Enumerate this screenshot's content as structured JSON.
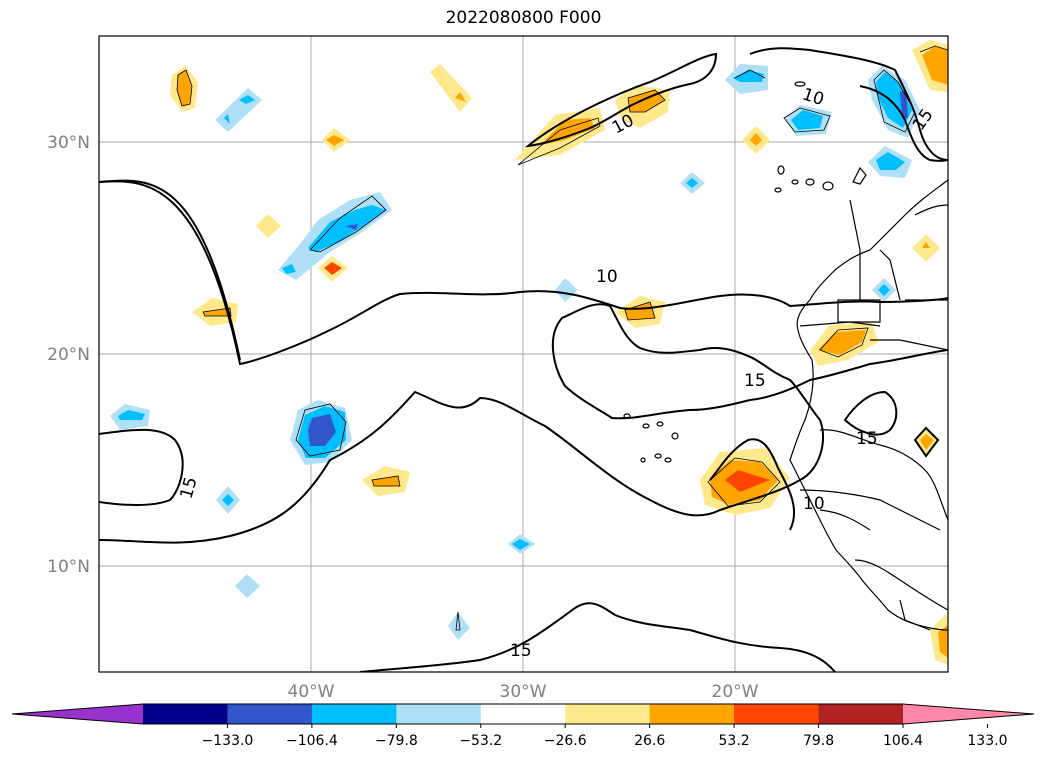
{
  "title": "2022080800 F000",
  "chart_data": {
    "type": "heatmap",
    "title": "2022080800 F000",
    "map_extent": {
      "lon": [
        -50,
        -10
      ],
      "lat": [
        5,
        35
      ]
    },
    "lat_ticks": [
      "30°N",
      "20°N",
      "10°N"
    ],
    "lon_ticks": [
      "40°W",
      "30°W",
      "20°W"
    ],
    "grid": true,
    "colorbar": {
      "position": "bottom",
      "extend": "both",
      "colors": [
        "#9932cc",
        "#00008b",
        "#3355cc",
        "#00bfff",
        "#b0e0f8",
        "#ffffff",
        "#ffe98c",
        "#ffa500",
        "#ff4500",
        "#b22222",
        "#ff88aa"
      ],
      "tick_labels": [
        "−133.0",
        "−106.4",
        "−79.8",
        "−53.2",
        "−26.6",
        "26.6",
        "53.2",
        "79.8",
        "106.4",
        "133.0"
      ]
    },
    "contour_labels": [
      "10",
      "15",
      "15",
      "10",
      "15",
      "15",
      "10",
      "10",
      "15"
    ]
  }
}
